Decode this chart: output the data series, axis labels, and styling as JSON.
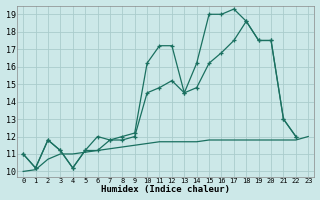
{
  "xlabel": "Humidex (Indice chaleur)",
  "ylabel": "",
  "xlim": [
    -0.5,
    23.5
  ],
  "ylim": [
    9.7,
    19.5
  ],
  "bg_color": "#cce8e8",
  "grid_color": "#aacccc",
  "line_color": "#1a7060",
  "line1_x": [
    0,
    1,
    2,
    3,
    4,
    5,
    6,
    7,
    8,
    9,
    10,
    11,
    12,
    13,
    14,
    15,
    16,
    17,
    18,
    19,
    20,
    21,
    22
  ],
  "line1_y": [
    11,
    10.2,
    11.8,
    11.2,
    10.2,
    11.2,
    12.0,
    11.8,
    12.0,
    12.2,
    16.2,
    17.2,
    17.2,
    14.5,
    16.2,
    19.0,
    19.0,
    19.3,
    18.6,
    17.5,
    17.5,
    13.0,
    12.0
  ],
  "line1_markers": true,
  "line2_x": [
    0,
    1,
    2,
    3,
    4,
    5,
    6,
    7,
    8,
    9,
    10,
    11,
    12,
    13,
    14,
    15,
    16,
    17,
    18,
    19,
    20,
    21,
    22
  ],
  "line2_y": [
    11,
    10.2,
    11.8,
    11.2,
    10.2,
    11.2,
    11.2,
    11.8,
    11.8,
    12.0,
    14.5,
    14.8,
    15.2,
    14.5,
    14.8,
    16.2,
    16.8,
    17.5,
    18.6,
    17.5,
    17.5,
    13.0,
    12.0
  ],
  "line2_markers": true,
  "line3_x": [
    0,
    1,
    2,
    3,
    4,
    5,
    6,
    7,
    8,
    9,
    10,
    11,
    12,
    13,
    14,
    15,
    16,
    17,
    18,
    19,
    20,
    21,
    22,
    23
  ],
  "line3_y": [
    10.0,
    10.1,
    10.7,
    11.0,
    11.0,
    11.1,
    11.2,
    11.3,
    11.4,
    11.5,
    11.6,
    11.7,
    11.7,
    11.7,
    11.7,
    11.8,
    11.8,
    11.8,
    11.8,
    11.8,
    11.8,
    11.8,
    11.8,
    12.0
  ],
  "line3_markers": false,
  "xtick_labels": [
    "0",
    "1",
    "2",
    "3",
    "4",
    "5",
    "6",
    "7",
    "8",
    "9",
    "10",
    "11",
    "12",
    "13",
    "14",
    "15",
    "16",
    "17",
    "18",
    "19",
    "20",
    "21",
    "22",
    "23"
  ],
  "ytick_values": [
    10,
    11,
    12,
    13,
    14,
    15,
    16,
    17,
    18,
    19
  ]
}
